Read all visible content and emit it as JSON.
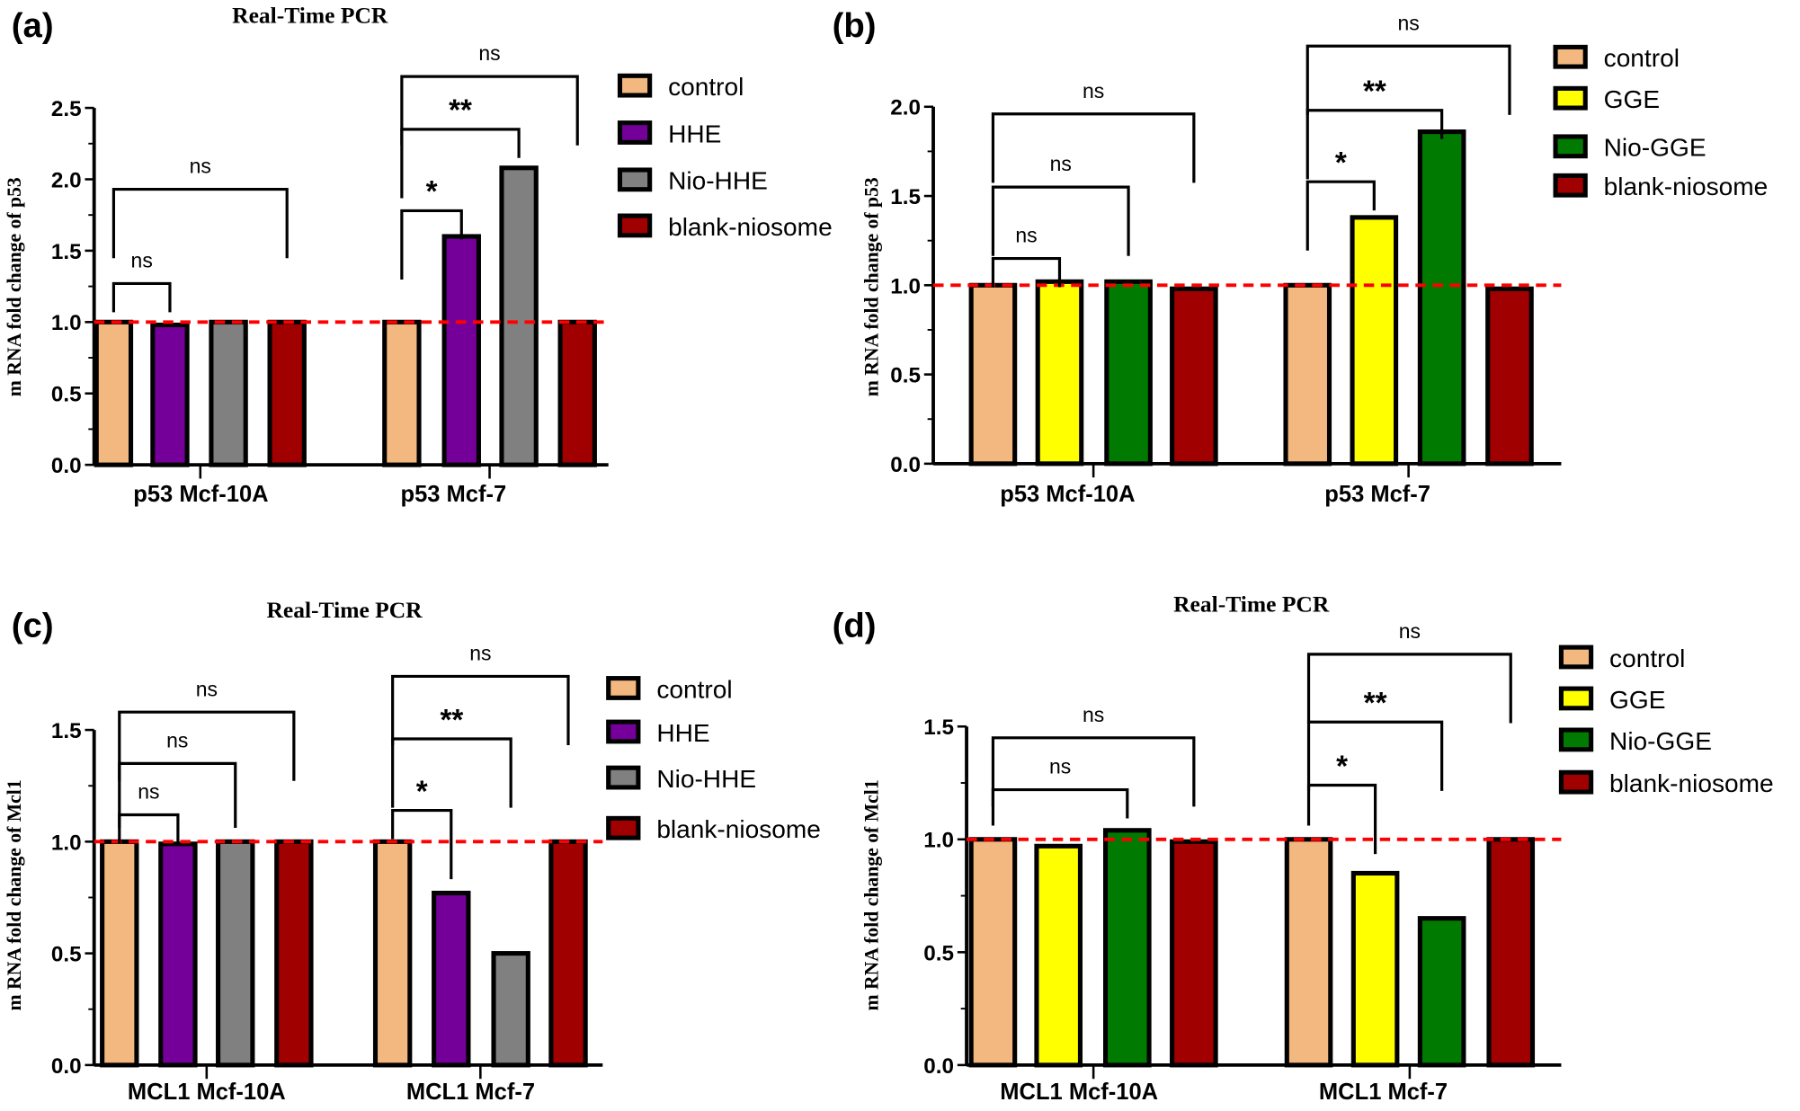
{
  "colors": {
    "control": "#f2b880",
    "HHE": "#740099",
    "Nio-HHE": "#808080",
    "GGE": "#ffff00",
    "Nio-GGE": "#007a00",
    "blank-niosome": "#a00000",
    "reference_line": "#ff0000"
  },
  "chart_data": [
    {
      "panel": "(a)",
      "type": "bar",
      "title": "Real-Time PCR",
      "ylabel": "m RNA fold change of p53",
      "ylim": [
        0,
        2.5
      ],
      "yticks": [
        "0.0",
        "0.5",
        "1.0",
        "1.5",
        "2.0",
        "2.5"
      ],
      "categories": [
        "p53 Mcf-10A",
        "p53 Mcf-7"
      ],
      "series": [
        {
          "name": "control",
          "values": [
            1.0,
            1.0
          ]
        },
        {
          "name": "HHE",
          "values": [
            0.98,
            1.6
          ]
        },
        {
          "name": "Nio-HHE",
          "values": [
            1.0,
            2.08
          ]
        },
        {
          "name": "blank-niosome",
          "values": [
            1.0,
            1.0
          ]
        }
      ],
      "reference_line": 1.0,
      "significance": [
        {
          "group": 0,
          "from": 0,
          "to": 1,
          "label": "ns",
          "y": 1.27
        },
        {
          "group": 0,
          "from": 0,
          "to": 3,
          "label": "ns",
          "y": 1.93
        },
        {
          "group": 1,
          "from": 0,
          "to": 1,
          "label": "*",
          "y": 1.78
        },
        {
          "group": 1,
          "from": 0,
          "to": 2,
          "label": "**",
          "y": 2.35
        },
        {
          "group": 1,
          "from": 0,
          "to": 3,
          "label": "ns",
          "y": 2.72
        }
      ]
    },
    {
      "panel": "(b)",
      "type": "bar",
      "title": "",
      "ylabel": "m RNA fold change of p53",
      "ylim": [
        0,
        2.0
      ],
      "yticks": [
        "0.0",
        "0.5",
        "1.0",
        "1.5",
        "2.0"
      ],
      "categories": [
        "p53 Mcf-10A",
        "p53 Mcf-7"
      ],
      "series": [
        {
          "name": "control",
          "values": [
            1.0,
            1.0
          ]
        },
        {
          "name": "GGE",
          "values": [
            1.02,
            1.38
          ]
        },
        {
          "name": "Nio-GGE",
          "values": [
            1.02,
            1.86
          ]
        },
        {
          "name": "blank-niosome",
          "values": [
            0.98,
            0.98
          ]
        }
      ],
      "reference_line": 1.0,
      "significance": [
        {
          "group": 0,
          "from": 0,
          "to": 1,
          "label": "ns",
          "y": 1.15
        },
        {
          "group": 0,
          "from": 0,
          "to": 2,
          "label": "ns",
          "y": 1.55
        },
        {
          "group": 0,
          "from": 0,
          "to": 3,
          "label": "ns",
          "y": 1.96
        },
        {
          "group": 1,
          "from": 0,
          "to": 1,
          "label": "*",
          "y": 1.58
        },
        {
          "group": 1,
          "from": 0,
          "to": 2,
          "label": "**",
          "y": 1.98
        },
        {
          "group": 1,
          "from": 0,
          "to": 3,
          "label": "ns",
          "y": 2.34
        }
      ]
    },
    {
      "panel": "(c)",
      "type": "bar",
      "title": "Real-Time PCR",
      "ylabel": "m RNA fold change of Mcl1",
      "ylim": [
        0,
        1.5
      ],
      "yticks": [
        "0.0",
        "0.5",
        "1.0",
        "1.5"
      ],
      "categories": [
        "MCL1  Mcf-10A",
        "MCL1  Mcf-7"
      ],
      "series": [
        {
          "name": "control",
          "values": [
            1.0,
            1.0
          ]
        },
        {
          "name": "HHE",
          "values": [
            0.99,
            0.77
          ]
        },
        {
          "name": "Nio-HHE",
          "values": [
            1.0,
            0.5
          ]
        },
        {
          "name": "blank-niosome",
          "values": [
            1.0,
            1.0
          ]
        }
      ],
      "reference_line": 1.0,
      "significance": [
        {
          "group": 0,
          "from": 0,
          "to": 1,
          "label": "ns",
          "y": 1.12
        },
        {
          "group": 0,
          "from": 0,
          "to": 2,
          "label": "ns",
          "y": 1.35
        },
        {
          "group": 0,
          "from": 0,
          "to": 3,
          "label": "ns",
          "y": 1.58
        },
        {
          "group": 1,
          "from": 0,
          "to": 1,
          "label": "*",
          "y": 1.14
        },
        {
          "group": 1,
          "from": 0,
          "to": 2,
          "label": "**",
          "y": 1.46
        },
        {
          "group": 1,
          "from": 0,
          "to": 3,
          "label": "ns",
          "y": 1.74
        }
      ]
    },
    {
      "panel": "(d)",
      "type": "bar",
      "title": "Real-Time PCR",
      "ylabel": "m RNA fold change of Mcl1",
      "ylim": [
        0,
        1.5
      ],
      "yticks": [
        "0.0",
        "0.5",
        "1.0",
        "1.5"
      ],
      "categories": [
        "MCL1 Mcf-10A",
        "MCL1 Mcf-7"
      ],
      "series": [
        {
          "name": "control",
          "values": [
            1.0,
            1.0
          ]
        },
        {
          "name": "GGE",
          "values": [
            0.97,
            0.85
          ]
        },
        {
          "name": "Nio-GGE",
          "values": [
            1.04,
            0.65
          ]
        },
        {
          "name": "blank-niosome",
          "values": [
            0.99,
            1.0
          ]
        }
      ],
      "reference_line": 1.0,
      "significance": [
        {
          "group": 0,
          "from": 0,
          "to": 2,
          "label": "ns",
          "y": 1.22
        },
        {
          "group": 0,
          "from": 0,
          "to": 3,
          "label": "ns",
          "y": 1.45
        },
        {
          "group": 1,
          "from": 0,
          "to": 1,
          "label": "*",
          "y": 1.24
        },
        {
          "group": 1,
          "from": 0,
          "to": 2,
          "label": "**",
          "y": 1.52
        },
        {
          "group": 1,
          "from": 0,
          "to": 3,
          "label": "ns",
          "y": 1.82
        }
      ]
    }
  ]
}
